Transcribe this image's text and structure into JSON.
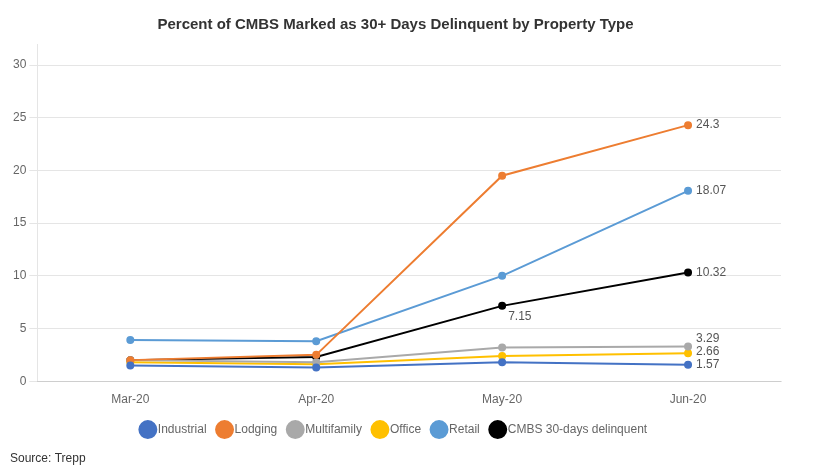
{
  "chart_data": {
    "type": "line",
    "title": "Percent of CMBS Marked as 30+ Days Delinquent by Property Type",
    "categories": [
      "Mar-20",
      "Apr-20",
      "May-20",
      "Jun-20"
    ],
    "series": [
      {
        "name": "Industrial",
        "color": "#4472C4",
        "values": [
          1.5,
          1.3,
          1.8,
          1.57
        ]
      },
      {
        "name": "Lodging",
        "color": "#ED7D31",
        "values": [
          2.0,
          2.5,
          19.5,
          24.3
        ]
      },
      {
        "name": "Multifamily",
        "color": "#A9A9A9",
        "values": [
          2.0,
          1.8,
          3.2,
          3.29
        ]
      },
      {
        "name": "Office",
        "color": "#FFC000",
        "values": [
          1.8,
          1.6,
          2.4,
          2.66
        ]
      },
      {
        "name": "Retail",
        "color": "#5B9BD5",
        "values": [
          3.9,
          3.8,
          10.0,
          18.07
        ]
      },
      {
        "name": "CMBS 30-days delinquent",
        "color": "#000000",
        "values": [
          2.0,
          2.3,
          7.15,
          10.32
        ]
      }
    ],
    "annotations": [
      {
        "text": "24.3",
        "x": "Jun-20",
        "y": 24.3
      },
      {
        "text": "18.07",
        "x": "Jun-20",
        "y": 18.07
      },
      {
        "text": "10.32",
        "x": "Jun-20",
        "y": 10.32
      },
      {
        "text": "3.29",
        "x": "Jun-20",
        "y": 3.29
      },
      {
        "text": "2.66",
        "x": "Jun-20",
        "y": 2.66
      },
      {
        "text": "1.57",
        "x": "Jun-20",
        "y": 1.57
      },
      {
        "text": "7.15",
        "x": "May-20",
        "y": 7.15
      }
    ],
    "source": "Source: Trepp",
    "ylim": [
      0,
      32
    ],
    "yticks": [
      0,
      5,
      10,
      15,
      20,
      25,
      30
    ],
    "grid": true,
    "legend": "bottom",
    "marker": "circle"
  }
}
